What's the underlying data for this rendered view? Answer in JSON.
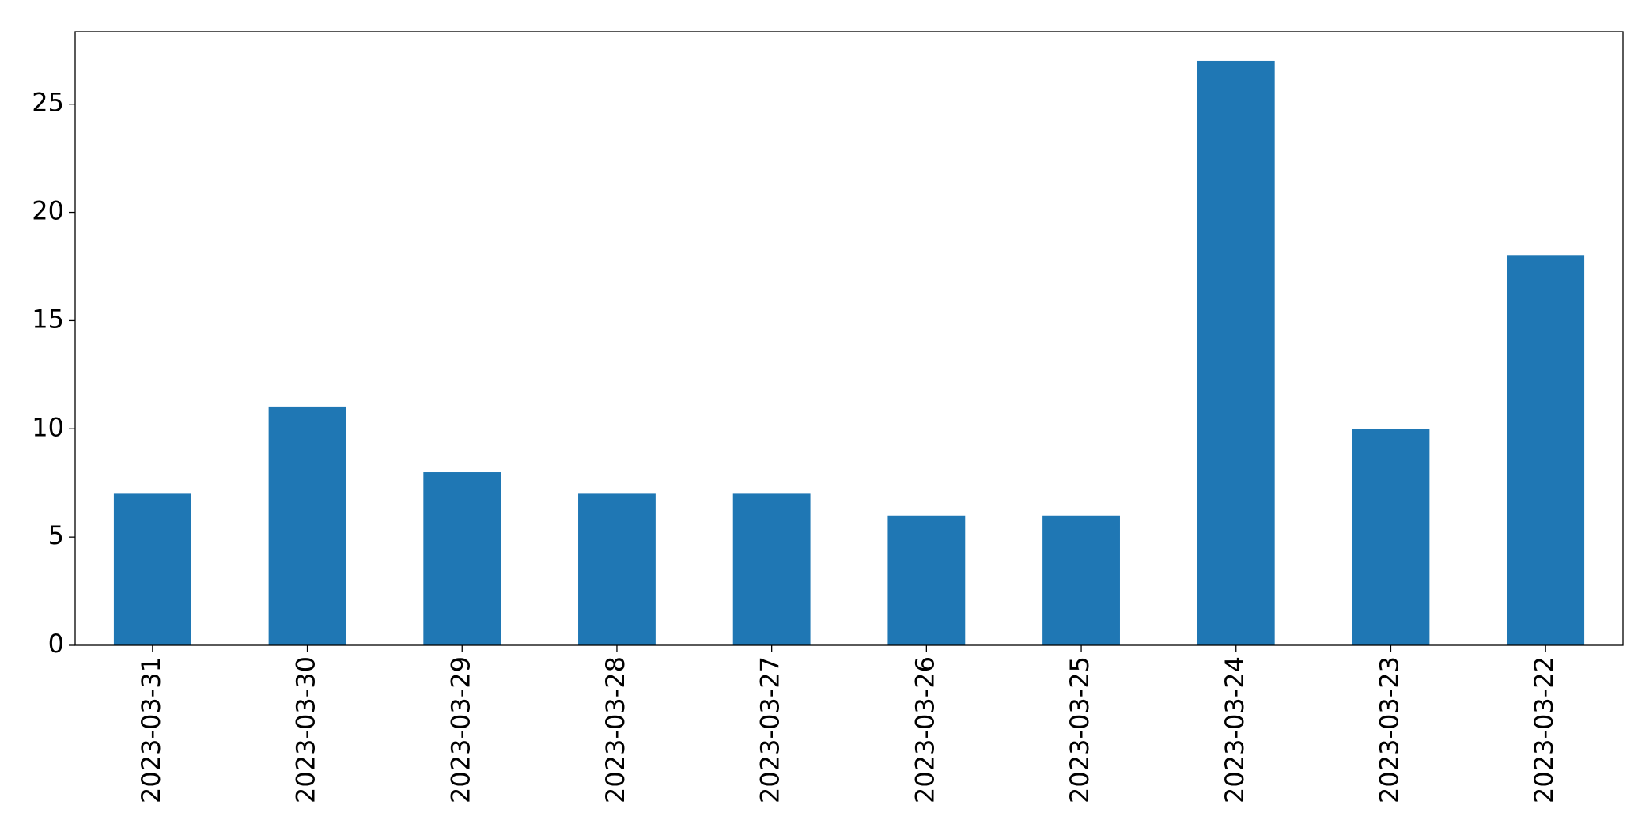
{
  "chart_data": {
    "type": "bar",
    "categories": [
      "2023-03-31",
      "2023-03-30",
      "2023-03-29",
      "2023-03-28",
      "2023-03-27",
      "2023-03-26",
      "2023-03-25",
      "2023-03-24",
      "2023-03-23",
      "2023-03-22"
    ],
    "values": [
      7,
      11,
      8,
      7,
      7,
      6,
      6,
      27,
      10,
      18
    ],
    "color": "#1f77b4",
    "ylim": [
      0,
      28.35
    ],
    "yticks": [
      0,
      5,
      10,
      15,
      20,
      25
    ],
    "grid": false
  }
}
